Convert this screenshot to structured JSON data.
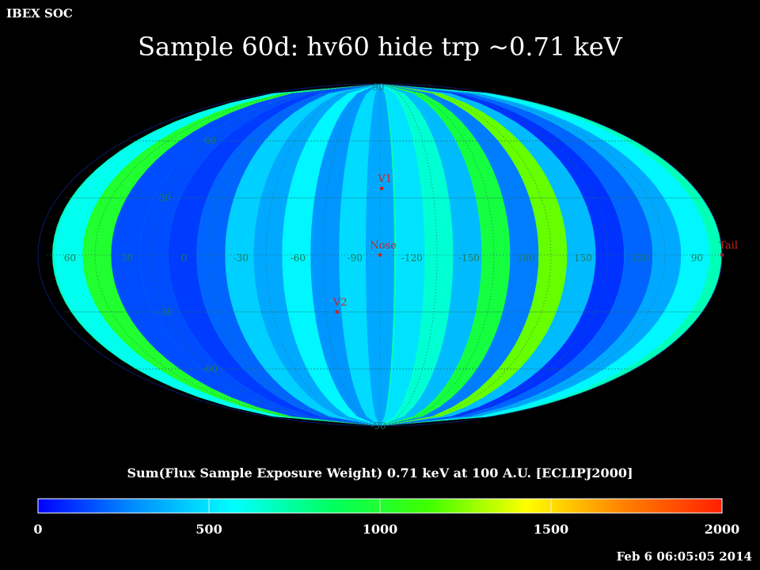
{
  "header": {
    "brand": "IBEX SOC",
    "timestamp": "Feb  6 06:05:05 2014"
  },
  "chart_data": {
    "type": "heatmap",
    "projection": "aitoff-ellipse",
    "title": "Sample 60d: hv60 hide trp ~0.71 keV",
    "colorbar": {
      "label": "Sum(Flux Sample Exposure Weight)  0.71 keV at 100 A.U. [ECLIPJ2000]",
      "range": [
        0,
        2000
      ],
      "ticks": [
        "0",
        "500",
        "1000",
        "1500",
        "2000"
      ],
      "colormap": [
        "#0000ff",
        "#0090ff",
        "#00ffff",
        "#00ff60",
        "#40ff00",
        "#ffff00",
        "#ff8000",
        "#ff2000"
      ]
    },
    "longitude_labels": [
      "60",
      "30",
      "0",
      "-30",
      "-60",
      "-90",
      "-120",
      "-150",
      "180",
      "150",
      "120",
      "90"
    ],
    "latitude_labels": [
      "90",
      "60",
      "30",
      "-30",
      "-60",
      "-90"
    ],
    "markers": [
      {
        "label": "V1",
        "lon": -105,
        "lat": 35,
        "color": "#cc2222"
      },
      {
        "label": "Nose",
        "lon": -104,
        "lat": 0,
        "color": "#cc2222"
      },
      {
        "label": "V2",
        "lon": -80,
        "lat": -30,
        "color": "#cc2222"
      },
      {
        "label": "Tail",
        "lon": 76,
        "lat": 0,
        "color": "#cc2222"
      }
    ],
    "flux_by_longitude": [
      {
        "lon": 76,
        "value": 700
      },
      {
        "lon": 60,
        "value": 600
      },
      {
        "lon": 45,
        "value": 1000
      },
      {
        "lon": 30,
        "value": 150
      },
      {
        "lon": 15,
        "value": 150
      },
      {
        "lon": 0,
        "value": 120
      },
      {
        "lon": -15,
        "value": 200
      },
      {
        "lon": -30,
        "value": 450
      },
      {
        "lon": -45,
        "value": 350
      },
      {
        "lon": -60,
        "value": 550
      },
      {
        "lon": -75,
        "value": 300
      },
      {
        "lon": -90,
        "value": 480
      },
      {
        "lon": -104,
        "value": 350
      },
      {
        "lon": -120,
        "value": 500
      },
      {
        "lon": -135,
        "value": 650
      },
      {
        "lon": -150,
        "value": 400
      },
      {
        "lon": -165,
        "value": 950
      },
      {
        "lon": 180,
        "value": 250
      },
      {
        "lon": 165,
        "value": 1200
      },
      {
        "lon": 150,
        "value": 400
      },
      {
        "lon": 135,
        "value": 100
      },
      {
        "lon": 120,
        "value": 200
      },
      {
        "lon": 105,
        "value": 350
      },
      {
        "lon": 90,
        "value": 550
      }
    ]
  }
}
